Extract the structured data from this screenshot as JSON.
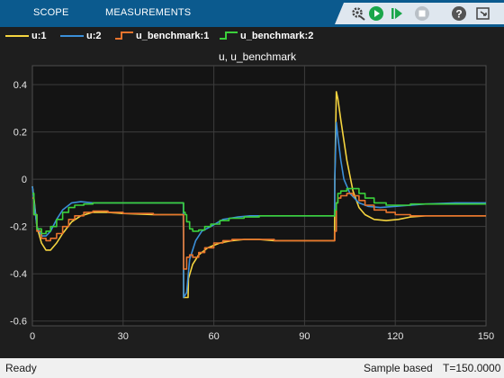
{
  "toolstrip": {
    "tabs": [
      {
        "label": "SCOPE"
      },
      {
        "label": "MEASUREMENTS"
      }
    ],
    "buttons": [
      "settings-icon",
      "run-icon",
      "step-forward-icon",
      "stop-icon",
      "help-icon",
      "expand-icon"
    ]
  },
  "colors": {
    "u1": "#f5d43f",
    "u2": "#3b8fd9",
    "bench1": "#e8742d",
    "bench2": "#3bd13b"
  },
  "statusbar": {
    "ready": "Ready",
    "mode": "Sample based",
    "time": "T=150.0000"
  },
  "chart_data": {
    "type": "line",
    "title": "u, u_benchmark",
    "xlabel": "",
    "ylabel": "",
    "xlim": [
      0,
      150
    ],
    "ylim": [
      -0.62,
      0.48
    ],
    "xticks": [
      "0",
      "30",
      "60",
      "90",
      "120",
      "150"
    ],
    "yticks": [
      "0.4",
      "0.2",
      "0",
      "-0.2",
      "-0.4",
      "-0.6"
    ],
    "grid": true,
    "legend_position": "top",
    "series": [
      {
        "name": "u:1",
        "color": "#f5d43f",
        "step": false,
        "x": [
          0,
          0.5,
          1.5,
          3,
          4.5,
          6,
          8,
          10,
          13,
          16,
          20,
          25,
          30,
          40,
          49.9,
          50,
          51.5,
          51.6,
          53,
          55,
          58,
          62,
          66,
          70,
          75,
          80,
          90,
          99.9,
          100,
          100.5,
          101,
          102,
          104,
          106,
          108,
          110,
          113,
          117,
          121,
          125,
          130,
          140,
          150
        ],
        "y": [
          -0.03,
          -0.08,
          -0.2,
          -0.27,
          -0.3,
          -0.3,
          -0.27,
          -0.23,
          -0.18,
          -0.155,
          -0.14,
          -0.14,
          -0.145,
          -0.15,
          -0.15,
          -0.5,
          -0.5,
          -0.42,
          -0.36,
          -0.32,
          -0.29,
          -0.27,
          -0.26,
          -0.255,
          -0.255,
          -0.26,
          -0.26,
          -0.26,
          0.0,
          0.37,
          0.34,
          0.25,
          0.08,
          -0.05,
          -0.12,
          -0.15,
          -0.17,
          -0.175,
          -0.17,
          -0.16,
          -0.155,
          -0.155,
          -0.155
        ]
      },
      {
        "name": "u:2",
        "color": "#3b8fd9",
        "step": false,
        "x": [
          0,
          0.5,
          1.5,
          3,
          4.5,
          6,
          8,
          10,
          13,
          16,
          20,
          25,
          30,
          40,
          49.9,
          50,
          51,
          52,
          54,
          56,
          59,
          63,
          68,
          72,
          78,
          85,
          90,
          99.9,
          100,
          100.5,
          101,
          102,
          103,
          105,
          108,
          111,
          115,
          120,
          125,
          130,
          140,
          150
        ],
        "y": [
          -0.03,
          -0.09,
          -0.2,
          -0.24,
          -0.24,
          -0.22,
          -0.17,
          -0.13,
          -0.1,
          -0.095,
          -0.1,
          -0.1,
          -0.1,
          -0.1,
          -0.1,
          -0.5,
          -0.48,
          -0.34,
          -0.26,
          -0.22,
          -0.2,
          -0.17,
          -0.16,
          -0.155,
          -0.155,
          -0.155,
          -0.155,
          -0.155,
          0.0,
          0.24,
          0.18,
          0.08,
          0.0,
          -0.06,
          -0.1,
          -0.115,
          -0.12,
          -0.115,
          -0.11,
          -0.105,
          -0.1,
          -0.1
        ]
      },
      {
        "name": "u_benchmark:1",
        "color": "#e8742d",
        "step": true,
        "x": [
          0,
          0.5,
          1.5,
          3,
          4.5,
          6,
          8,
          10,
          12,
          14,
          17,
          20,
          25,
          30,
          40,
          49.9,
          50,
          50.5,
          51,
          52,
          53,
          55,
          57,
          60,
          63,
          66,
          70,
          75,
          80,
          90,
          99.9,
          100,
          100.5,
          101,
          102,
          104,
          106,
          108,
          110,
          113,
          117,
          120,
          125,
          130,
          140,
          150
        ],
        "y": [
          -0.08,
          -0.15,
          -0.22,
          -0.25,
          -0.26,
          -0.25,
          -0.23,
          -0.2,
          -0.17,
          -0.155,
          -0.14,
          -0.135,
          -0.14,
          -0.145,
          -0.15,
          -0.15,
          -0.38,
          -0.38,
          -0.33,
          -0.32,
          -0.33,
          -0.31,
          -0.29,
          -0.27,
          -0.26,
          -0.255,
          -0.255,
          -0.255,
          -0.26,
          -0.26,
          -0.26,
          -0.22,
          -0.1,
          -0.08,
          -0.07,
          -0.06,
          -0.07,
          -0.09,
          -0.11,
          -0.13,
          -0.14,
          -0.15,
          -0.155,
          -0.155,
          -0.155,
          -0.155
        ]
      },
      {
        "name": "u_benchmark:2",
        "color": "#3bd13b",
        "step": true,
        "x": [
          0,
          0.5,
          1.5,
          3,
          4.5,
          6,
          8,
          10,
          12,
          14,
          17,
          20,
          25,
          30,
          40,
          49.9,
          50,
          50.5,
          51,
          52,
          53,
          55,
          57,
          59,
          62,
          65,
          70,
          75,
          80,
          90,
          99.9,
          100,
          100.5,
          101,
          102,
          104,
          106,
          108,
          110,
          113,
          117,
          120,
          125,
          130,
          140,
          150
        ],
        "y": [
          -0.06,
          -0.15,
          -0.21,
          -0.23,
          -0.22,
          -0.2,
          -0.17,
          -0.14,
          -0.12,
          -0.11,
          -0.105,
          -0.1,
          -0.1,
          -0.1,
          -0.1,
          -0.1,
          -0.14,
          -0.15,
          -0.18,
          -0.21,
          -0.22,
          -0.215,
          -0.2,
          -0.19,
          -0.175,
          -0.165,
          -0.16,
          -0.155,
          -0.155,
          -0.155,
          -0.155,
          -0.13,
          -0.1,
          -0.06,
          -0.05,
          -0.04,
          -0.04,
          -0.06,
          -0.08,
          -0.1,
          -0.11,
          -0.11,
          -0.105,
          -0.105,
          -0.105,
          -0.105
        ]
      }
    ]
  }
}
